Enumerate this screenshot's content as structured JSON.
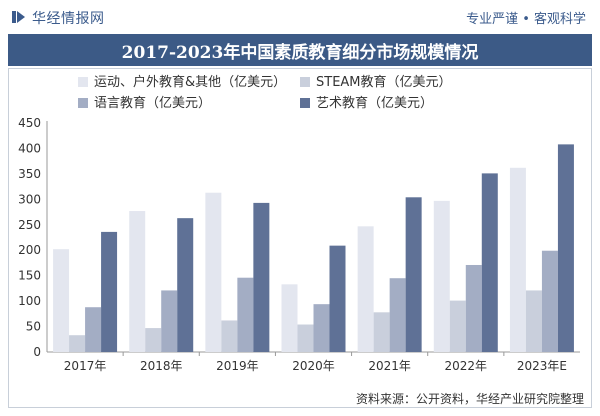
{
  "header": {
    "brand": "华经情报网",
    "slogan": "专业严谨 • 客观科学"
  },
  "footer": {
    "source": "资料来源：公开资料，华经产业研究院整理"
  },
  "colors": {
    "title_bg": "#3c5a86",
    "s1": "#e3e6ef",
    "s2": "#c9cfdc",
    "s3": "#a3adc4",
    "s4": "#5f7196"
  },
  "chart_data": {
    "type": "bar",
    "title": "2017-2023年中国素质教育细分市场规模情况",
    "categories": [
      "2017年",
      "2018年",
      "2019年",
      "2020年",
      "2021年",
      "2022年",
      "2023年E"
    ],
    "series": [
      {
        "name": "运动、户外教育&其他（亿美元）",
        "values": [
          202,
          277,
          313,
          133,
          247,
          297,
          362
        ]
      },
      {
        "name": "STEAM教育（亿美元）",
        "values": [
          33,
          47,
          62,
          54,
          78,
          101,
          121
        ]
      },
      {
        "name": "语言教育（亿美元）",
        "values": [
          88,
          121,
          146,
          94,
          145,
          171,
          199
        ]
      },
      {
        "name": "艺术教育（亿美元）",
        "values": [
          236,
          263,
          293,
          209,
          304,
          351,
          408
        ]
      }
    ],
    "ylim": [
      0,
      450
    ],
    "yticks": [
      0,
      50,
      100,
      150,
      200,
      250,
      300,
      350,
      400,
      450
    ],
    "xlabel": "",
    "ylabel": "",
    "legend": "top-left",
    "grid": false
  }
}
